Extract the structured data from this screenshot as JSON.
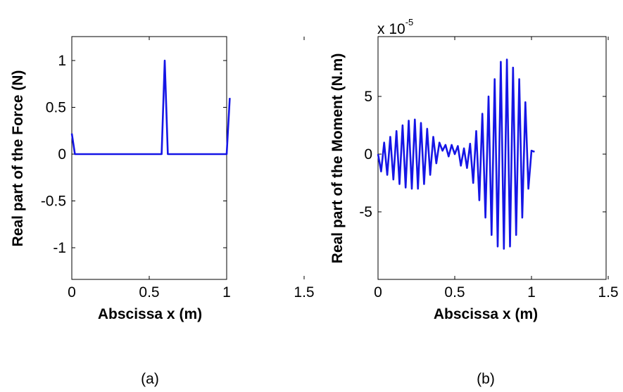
{
  "chart_data": [
    {
      "type": "line",
      "xlabel": "Abscissa x (m)",
      "ylabel": "Real part of the Force (N)",
      "xlim": [
        0,
        1.5
      ],
      "ylim": [
        -1.2,
        1.2
      ],
      "xticks": [
        "0",
        "0.5",
        "1",
        "1.5"
      ],
      "yticks": [
        "-1",
        "-0.5",
        "0",
        "0.5",
        "1"
      ],
      "grid": false,
      "caption": "(a)",
      "color": "#1515e6",
      "series": [
        {
          "x": [
            0,
            0.02,
            0.1,
            0.2,
            0.3,
            0.4,
            0.5,
            0.58,
            0.6,
            0.62,
            0.7,
            0.8,
            0.9,
            1.0,
            1.02
          ],
          "y": [
            0.22,
            0.0,
            0.0,
            0.0,
            0.0,
            0.0,
            0.0,
            0.0,
            1.0,
            0.0,
            0.0,
            0.0,
            0.0,
            0.0,
            0.6
          ]
        }
      ]
    },
    {
      "type": "line",
      "xlabel": "Abscissa x (m)",
      "ylabel": "Real part of the Moment (N.m)",
      "multiplier": "x 10",
      "multiplier_exponent": "-5",
      "xlim": [
        0,
        1.5
      ],
      "ylim": [
        -10,
        10
      ],
      "xticks": [
        "0",
        "0.5",
        "1",
        "1.5"
      ],
      "yticks": [
        "-5",
        "0",
        "5"
      ],
      "grid": false,
      "caption": "(b)",
      "color": "#1515e6",
      "series": [
        {
          "x": [
            0.0,
            0.02,
            0.04,
            0.06,
            0.08,
            0.1,
            0.12,
            0.14,
            0.16,
            0.18,
            0.2,
            0.22,
            0.24,
            0.26,
            0.28,
            0.3,
            0.32,
            0.34,
            0.36,
            0.38,
            0.4,
            0.42,
            0.44,
            0.46,
            0.48,
            0.5,
            0.52,
            0.54,
            0.56,
            0.58,
            0.6,
            0.62,
            0.64,
            0.66,
            0.68,
            0.7,
            0.72,
            0.74,
            0.76,
            0.78,
            0.8,
            0.82,
            0.84,
            0.86,
            0.88,
            0.9,
            0.92,
            0.94,
            0.96,
            0.98,
            1.0,
            1.02
          ],
          "y": [
            0,
            -1.5,
            1.0,
            -1.8,
            1.5,
            -2.2,
            2.0,
            -2.6,
            2.5,
            -2.9,
            2.9,
            -3.0,
            3.0,
            -3.0,
            2.7,
            -2.6,
            2.2,
            -1.8,
            1.5,
            -0.8,
            1.0,
            0.3,
            0.8,
            -0.2,
            0.8,
            0.0,
            0.7,
            -1.0,
            0.5,
            -1.2,
            0.9,
            -2.5,
            2.0,
            -4.0,
            3.5,
            -5.5,
            5.0,
            -7.0,
            6.5,
            -8.0,
            8.0,
            -8.2,
            8.2,
            -8.0,
            7.5,
            -7.0,
            6.5,
            -5.5,
            4.5,
            -3.0,
            0.3,
            0.2
          ]
        }
      ]
    }
  ]
}
